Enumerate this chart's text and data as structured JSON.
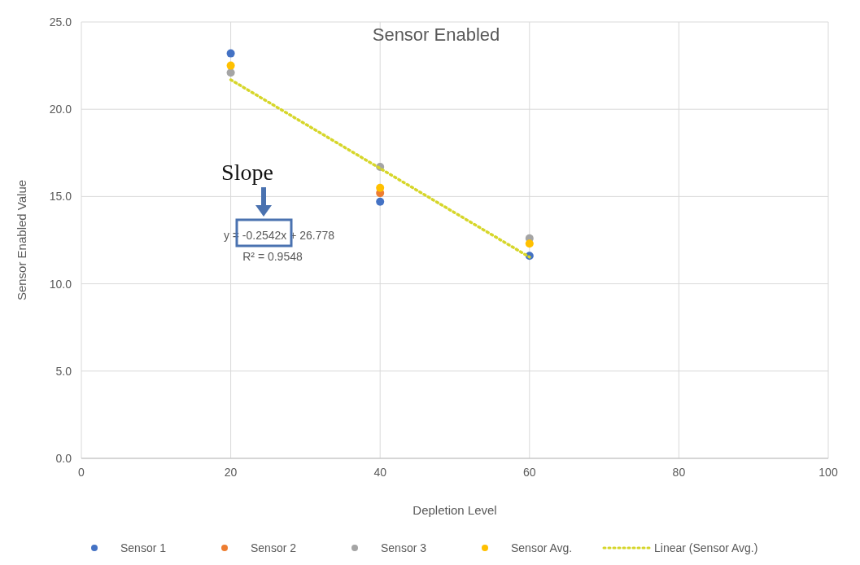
{
  "chart_data": {
    "type": "scatter",
    "title": "Sensor Enabled",
    "xlabel": "Depletion Level",
    "ylabel": "Sensor Enabled Value",
    "x": [
      20,
      40,
      60
    ],
    "series": [
      {
        "name": "Sensor 1",
        "color": "#4472c4",
        "values": [
          23.2,
          14.7,
          11.6
        ]
      },
      {
        "name": "Sensor 2",
        "color": "#ed7d31",
        "values": [
          null,
          15.2,
          null
        ]
      },
      {
        "name": "Sensor 3",
        "color": "#a5a5a5",
        "values": [
          22.1,
          16.7,
          12.6
        ]
      },
      {
        "name": "Sensor Avg.",
        "color": "#ffc000",
        "values": [
          22.5,
          15.5,
          12.3
        ]
      },
      {
        "name": "Linear (Sensor Avg.)",
        "type": "line",
        "marker": "none",
        "line_style": "dotted",
        "color": "#d6d62a",
        "x": [
          20,
          60
        ],
        "values": [
          21.69,
          11.53
        ]
      }
    ],
    "xlim": [
      0,
      100
    ],
    "xticks": [
      0,
      20,
      40,
      60,
      80,
      100
    ],
    "ylim": [
      0,
      25
    ],
    "yticks": [
      {
        "value": 0,
        "label": "0.0"
      },
      {
        "value": 5,
        "label": "5.0"
      },
      {
        "value": 10,
        "label": "10.0"
      },
      {
        "value": 15,
        "label": "15.0"
      },
      {
        "value": 20,
        "label": "20.0"
      },
      {
        "value": 25,
        "label": "25.0"
      }
    ],
    "grid": true,
    "legend": "bottom",
    "marker": "circle",
    "annotations": [
      "Slope",
      "y = -0.2542x + 26.778",
      "R² = 0.9548"
    ]
  }
}
